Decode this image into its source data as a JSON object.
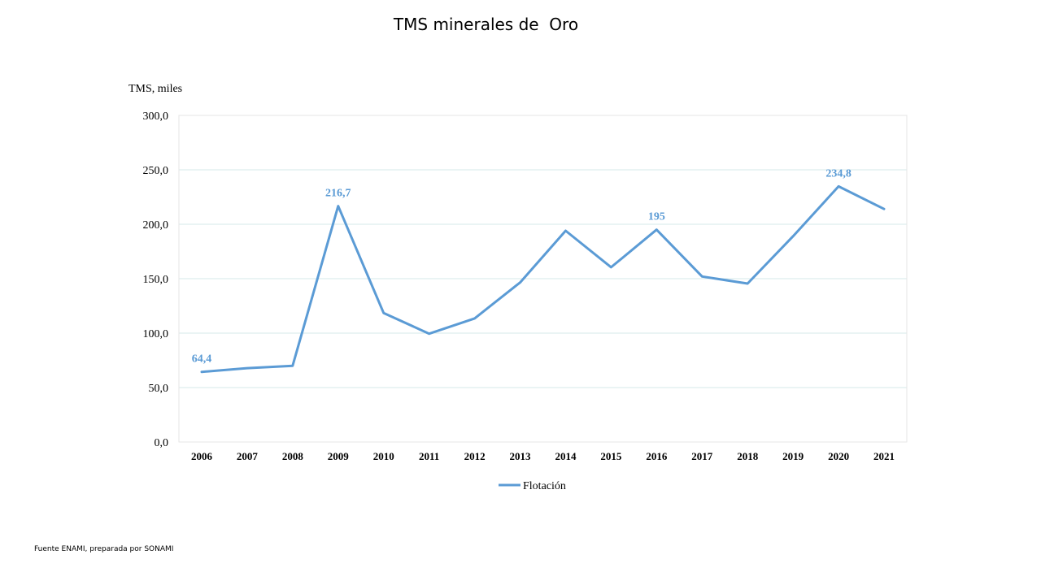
{
  "page": {
    "title": "TMS minerales de  Oro",
    "source": "Fuente ENAMI, preparada por SONAMI"
  },
  "chart_data": {
    "type": "line",
    "title": "TMS minerales de  Oro",
    "ylabel": "TMS, miles",
    "xlabel": "",
    "categories": [
      "2006",
      "2007",
      "2008",
      "2009",
      "2010",
      "2011",
      "2012",
      "2013",
      "2014",
      "2015",
      "2016",
      "2017",
      "2018",
      "2019",
      "2020",
      "2021"
    ],
    "series": [
      {
        "name": "Flotación",
        "color": "#5b9bd5",
        "values": [
          64.4,
          67.8,
          70.0,
          216.7,
          118.5,
          99.5,
          113.5,
          146.5,
          194.0,
          160.5,
          195.0,
          152.0,
          145.5,
          189.0,
          234.8,
          214.0
        ]
      }
    ],
    "ylim": [
      0,
      300
    ],
    "yticks": [
      "0,0",
      "50,0",
      "100,0",
      "150,0",
      "200,0",
      "250,0",
      "300,0"
    ],
    "ytick_values": [
      0,
      50,
      100,
      150,
      200,
      250,
      300
    ],
    "data_labels": [
      {
        "index": 0,
        "text": "64,4"
      },
      {
        "index": 3,
        "text": "216,7"
      },
      {
        "index": 10,
        "text": "195"
      },
      {
        "index": 14,
        "text": "234,8"
      }
    ],
    "grid": true,
    "legend": "bottom-center"
  }
}
